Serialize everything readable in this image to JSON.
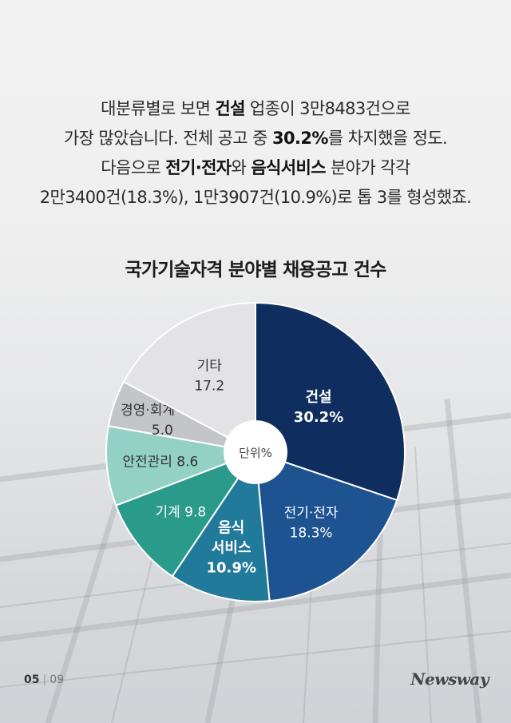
{
  "intro": {
    "line1_a": "대분류별로 보면 ",
    "line1_b": "건설",
    "line1_c": " 업종이 3만8483건으로",
    "line2_a": "가장 많았습니다. 전체 공고 중 ",
    "line2_b": "30.2%",
    "line2_c": "를 차지했을 정도.",
    "line3_a": "다음으로 ",
    "line3_b": "전기·전자",
    "line3_c": "와 ",
    "line3_d": "음식서비스",
    "line3_e": " 분야가 각각",
    "line4": "2만3400건(18.3%), 1만3907건(10.9%)로 톱 3를 형성했죠."
  },
  "chart_data": {
    "type": "pie",
    "title": "국가기술자격 분야별 채용공고 건수",
    "unit_label": "단위%",
    "slices": [
      {
        "label_lines": [
          "건설",
          "30.2%"
        ],
        "value": 30.2,
        "color": "#0f2d5e",
        "text_color": "#ffffff",
        "bold": true
      },
      {
        "label_lines": [
          "전기·전자",
          "18.3%"
        ],
        "value": 18.3,
        "color": "#1d5391",
        "text_color": "#ffffff",
        "bold": false
      },
      {
        "label_lines": [
          "음식",
          "서비스",
          "10.9%"
        ],
        "value": 10.9,
        "color": "#227a9a",
        "text_color": "#ffffff",
        "bold": true
      },
      {
        "label_lines": [
          "기계 9.8"
        ],
        "value": 9.8,
        "color": "#2a9a8a",
        "text_color": "#ffffff",
        "bold": false
      },
      {
        "label_lines": [
          "안전관리 8.6"
        ],
        "value": 8.6,
        "color": "#92d1c3",
        "text_color": "#333333",
        "bold": false
      },
      {
        "label_lines": [
          "경영·회계·사무",
          "5.0"
        ],
        "value": 5.0,
        "color": "#c4c5c8",
        "text_color": "#333333",
        "bold": false
      },
      {
        "label_lines": [
          "기타",
          "17.2"
        ],
        "value": 17.2,
        "color": "#e3e3e5",
        "text_color": "#333333",
        "bold": false
      }
    ]
  },
  "footer": {
    "page_current": "05",
    "page_sep": "|",
    "page_total": "09",
    "logo": "Newsway"
  }
}
